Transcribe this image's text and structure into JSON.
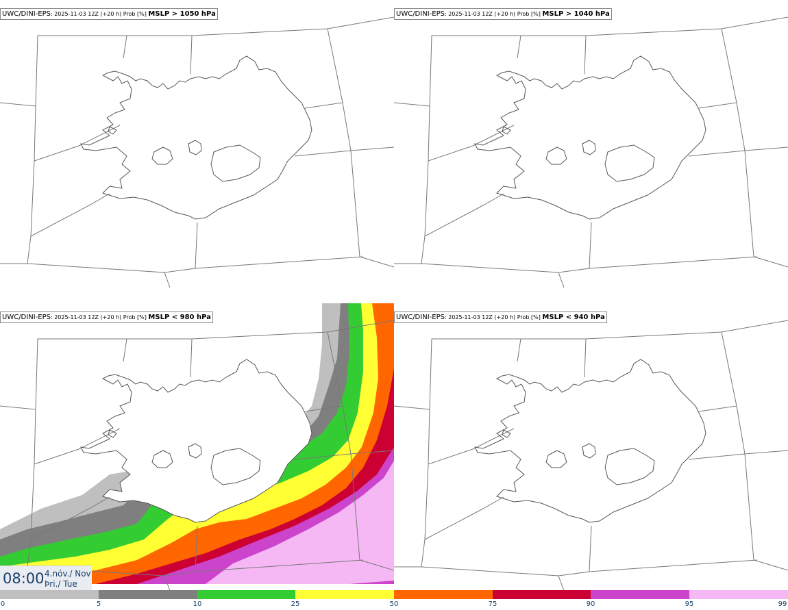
{
  "panels": [
    {
      "model": "UWC/DINI-EPS",
      "meta": ": 2025-11-03 12Z (+20 h) Prob [%] ",
      "threshold": "MSLP > 1050 hPa"
    },
    {
      "model": "UWC/DINI-EPS",
      "meta": ": 2025-11-03 12Z (+20 h) Prob [%] ",
      "threshold": "MSLP > 1040 hPa"
    },
    {
      "model": "UWC/DINI-EPS",
      "meta": ": 2025-11-03 12Z (+20 h) Prob [%] ",
      "threshold": "MSLP < 980 hPa"
    },
    {
      "model": "UWC/DINI-EPS",
      "meta": ": 2025-11-03 12Z (+20 h) Prob [%] ",
      "threshold": "MSLP < 940 hPa"
    }
  ],
  "time": {
    "clock": "08:00",
    "date_line": "4.nóv./ Nov",
    "day_line": "Þri./ Tue"
  },
  "colorbar": {
    "ticks": [
      "0",
      "5",
      "10",
      "25",
      "50",
      "75",
      "90",
      "95",
      "99"
    ],
    "colors": [
      "#ffffff",
      "#bfbfbf",
      "#7f7f7f",
      "#33cc33",
      "#ffff33",
      "#ff6600",
      "#cc0033",
      "#cc44cc",
      "#f5b8f5"
    ]
  },
  "map_colors": {
    "coast": "#555555",
    "border": "#777777"
  }
}
